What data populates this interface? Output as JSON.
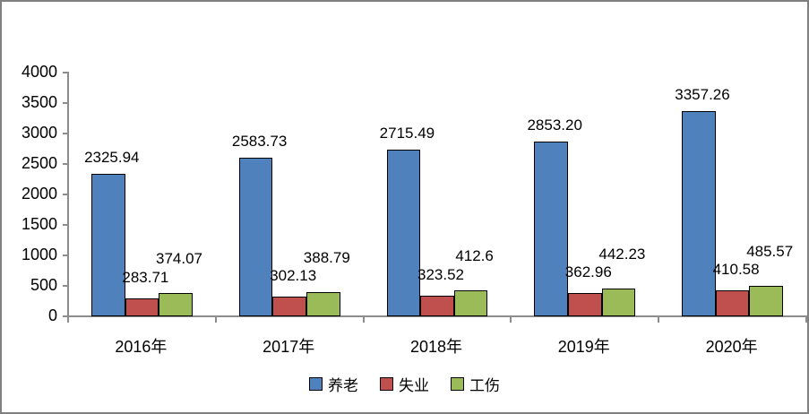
{
  "chart_data": {
    "type": "bar",
    "categories": [
      "2016年",
      "2017年",
      "2018年",
      "2019年",
      "2020年"
    ],
    "series": [
      {
        "name": "养老",
        "color": "#4F81BD",
        "values": [
          2325.94,
          2583.73,
          2715.49,
          2853.2,
          3357.26
        ],
        "value_labels": [
          "2325.94",
          "2583.73",
          "2715.49",
          "2853.20",
          "3357.26"
        ]
      },
      {
        "name": "失业",
        "color": "#C0504D",
        "values": [
          283.71,
          302.13,
          323.52,
          362.96,
          410.58
        ],
        "value_labels": [
          "283.71",
          "302.13",
          "323.52",
          "362.96",
          "410.58"
        ]
      },
      {
        "name": "工伤",
        "color": "#9BBB59",
        "values": [
          374.07,
          388.79,
          412.6,
          442.23,
          485.57
        ],
        "value_labels": [
          "374.07",
          "388.79",
          "412.6",
          "442.23",
          "485.57"
        ]
      }
    ],
    "y_axis": {
      "min": 0,
      "max": 4000,
      "tick_step": 500,
      "tick_labels": [
        "0",
        "500",
        "1000",
        "1500",
        "2000",
        "2500",
        "3000",
        "3500",
        "4000"
      ]
    },
    "grid": false,
    "legend_position": "bottom",
    "colors": {
      "axis": "#8C8C8C",
      "bar_border": "#000000",
      "text": "#000000",
      "frame_border": "#808080",
      "background": "#FFFFFF"
    }
  }
}
